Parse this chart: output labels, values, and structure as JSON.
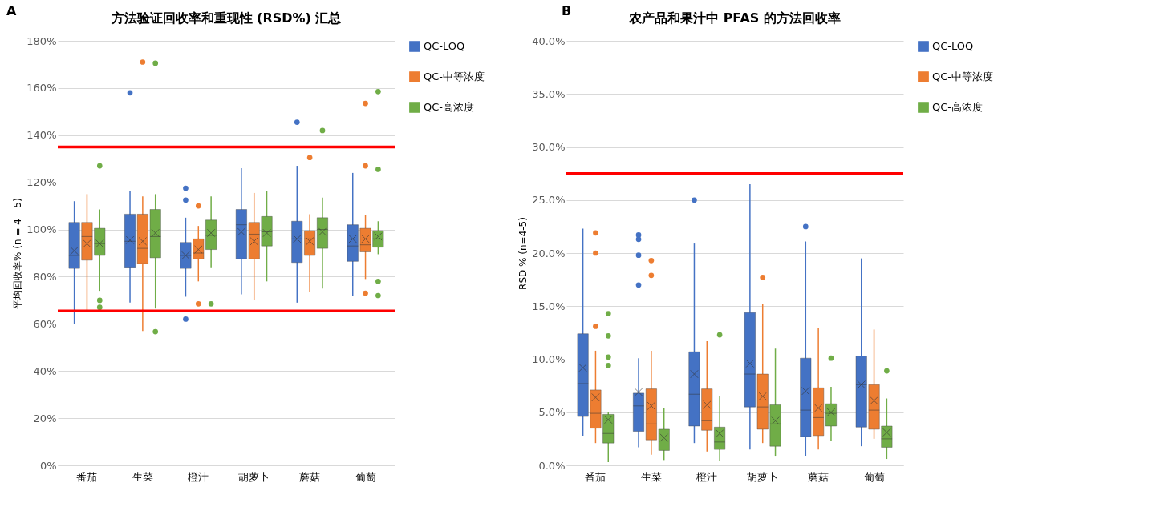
{
  "chart_data": [
    {
      "type": "box",
      "title": "方法验证回收率和重现性 (RSD%) 汇总",
      "ylabel": "平均回收率% (n = 4 – 5)",
      "annotations": [
        "A"
      ],
      "categories": [
        "番茄",
        "生菜",
        "橙汁",
        "胡萝卜",
        "蘑菇",
        "葡萄"
      ],
      "ylim": [
        0,
        180
      ],
      "yticks": [
        {
          "value": 0,
          "label": "0%"
        },
        {
          "value": 20,
          "label": "20%"
        },
        {
          "value": 40,
          "label": "40%"
        },
        {
          "value": 60,
          "label": "60%"
        },
        {
          "value": 80,
          "label": "80%"
        },
        {
          "value": 100,
          "label": "100%"
        },
        {
          "value": 120,
          "label": "120%"
        },
        {
          "value": 140,
          "label": "140%"
        },
        {
          "value": 160,
          "label": "160%"
        },
        {
          "value": 180,
          "label": "180%"
        }
      ],
      "grid": "y",
      "legend": "right",
      "ref_lines": [
        {
          "axis": "y",
          "value": 135,
          "color": "#ff0000"
        },
        {
          "axis": "y",
          "value": 65.5,
          "color": "#ff0000"
        }
      ],
      "series": [
        {
          "name": "QC-LOQ",
          "color": "#4472c4",
          "boxes": [
            {
              "low": 60,
              "q1": 83.5,
              "median": 89,
              "q3": 103,
              "high": 112,
              "mean": 91
            },
            {
              "low": 69,
              "q1": 84,
              "median": 95,
              "q3": 106.5,
              "high": 116.5,
              "mean": 95.5,
              "outliers": [
                158
              ]
            },
            {
              "low": 71.5,
              "q1": 83.5,
              "median": 89,
              "q3": 94.5,
              "high": 105,
              "mean": 89,
              "outliers": [
                117.5,
                112.5,
                62
              ]
            },
            {
              "low": 72.5,
              "q1": 87.5,
              "median": 102,
              "q3": 108.5,
              "high": 126,
              "mean": 99
            },
            {
              "low": 69,
              "q1": 86,
              "median": 96,
              "q3": 103.5,
              "high": 127,
              "mean": 96,
              "outliers": [
                145.5
              ]
            },
            {
              "low": 72,
              "q1": 86.5,
              "median": 93,
              "q3": 102,
              "high": 124,
              "mean": 96
            }
          ]
        },
        {
          "name": "QC-中等浓度",
          "color": "#ed7d31",
          "boxes": [
            {
              "low": 65,
              "q1": 87,
              "median": 97,
              "q3": 103,
              "high": 115,
              "mean": 94
            },
            {
              "low": 57,
              "q1": 85.5,
              "median": 92,
              "q3": 106.5,
              "high": 114,
              "mean": 95,
              "outliers": [
                171
              ]
            },
            {
              "low": 78,
              "q1": 87.5,
              "median": 90,
              "q3": 96,
              "high": 101.5,
              "mean": 91.5,
              "outliers": [
                110,
                68.5
              ]
            },
            {
              "low": 70,
              "q1": 87.5,
              "median": 98,
              "q3": 103,
              "high": 115.5,
              "mean": 95
            },
            {
              "low": 73.5,
              "q1": 89,
              "median": 96,
              "q3": 99.5,
              "high": 106.5,
              "mean": 95,
              "outliers": [
                130.5
              ]
            },
            {
              "low": 79,
              "q1": 90.5,
              "median": 93.5,
              "q3": 100.5,
              "high": 106,
              "mean": 96,
              "outliers": [
                153.5,
                127,
                73
              ]
            }
          ]
        },
        {
          "name": "QC-高浓度",
          "color": "#70ad47",
          "boxes": [
            {
              "low": 74,
              "q1": 89,
              "median": 94,
              "q3": 100.5,
              "high": 108.5,
              "mean": 94,
              "outliers": [
                127,
                70,
                67
              ]
            },
            {
              "low": 66.5,
              "q1": 88,
              "median": 97,
              "q3": 108.5,
              "high": 115,
              "mean": 98.5,
              "outliers": [
                170.5,
                56.7
              ]
            },
            {
              "low": 84,
              "q1": 91.5,
              "median": 97.5,
              "q3": 104,
              "high": 114,
              "mean": 98.5,
              "outliers": [
                68.5
              ]
            },
            {
              "low": 78,
              "q1": 93,
              "median": 99,
              "q3": 105.5,
              "high": 116.5,
              "mean": 98.5
            },
            {
              "low": 75,
              "q1": 92,
              "median": 100,
              "q3": 105,
              "high": 113.5,
              "mean": 99,
              "outliers": [
                142
              ]
            },
            {
              "low": 89.5,
              "q1": 92.5,
              "median": 96,
              "q3": 99.5,
              "high": 103.5,
              "mean": 97,
              "outliers": [
                158.5,
                125.5,
                78,
                72
              ]
            }
          ]
        }
      ]
    },
    {
      "type": "box",
      "title": "农产品和果汁中 PFAS 的方法回收率",
      "ylabel": "RSD % (n=4-5)",
      "annotations": [
        "B"
      ],
      "categories": [
        "番茄",
        "生菜",
        "橙汁",
        "胡萝卜",
        "蘑菇",
        "葡萄"
      ],
      "ylim": [
        0,
        40
      ],
      "yticks": [
        {
          "value": 0,
          "label": "0.0%"
        },
        {
          "value": 5,
          "label": "5.0%"
        },
        {
          "value": 10,
          "label": "10.0%"
        },
        {
          "value": 15,
          "label": "15.0%"
        },
        {
          "value": 20,
          "label": "20.0%"
        },
        {
          "value": 25,
          "label": "25.0%"
        },
        {
          "value": 30,
          "label": "30.0%"
        },
        {
          "value": 35,
          "label": "35.0%"
        },
        {
          "value": 40,
          "label": "40.0%"
        }
      ],
      "grid": "y",
      "legend": "right",
      "ref_lines": [
        {
          "axis": "y",
          "value": 27.5,
          "color": "#ff0000"
        }
      ],
      "series": [
        {
          "name": "QC-LOQ",
          "color": "#4472c4",
          "boxes": [
            {
              "low": 2.8,
              "q1": 4.6,
              "median": 7.7,
              "q3": 12.4,
              "high": 22.3,
              "mean": 9.2
            },
            {
              "low": 1.7,
              "q1": 3.2,
              "median": 5.6,
              "q3": 6.8,
              "high": 10.1,
              "mean": 6.9,
              "outliers": [
                21.7,
                21.3,
                19.8,
                17
              ]
            },
            {
              "low": 2.1,
              "q1": 3.7,
              "median": 6.7,
              "q3": 10.7,
              "high": 20.9,
              "mean": 8.6,
              "outliers": [
                25
              ]
            },
            {
              "low": 1.5,
              "q1": 5.5,
              "median": 8.6,
              "q3": 14.4,
              "high": 26.5,
              "mean": 9.6
            },
            {
              "low": 0.9,
              "q1": 2.7,
              "median": 5.2,
              "q3": 10.1,
              "high": 21.1,
              "mean": 7,
              "outliers": [
                22.5
              ]
            },
            {
              "low": 1.8,
              "q1": 3.6,
              "median": 7.6,
              "q3": 10.3,
              "high": 19.5,
              "mean": 7.6
            }
          ]
        },
        {
          "name": "QC-中等浓度",
          "color": "#ed7d31",
          "boxes": [
            {
              "low": 2.1,
              "q1": 3.5,
              "median": 4.9,
              "q3": 7.1,
              "high": 10.8,
              "mean": 6.4,
              "outliers": [
                21.9,
                20,
                13.1
              ]
            },
            {
              "low": 1,
              "q1": 2.4,
              "median": 3.9,
              "q3": 7.2,
              "high": 10.8,
              "mean": 5.6,
              "outliers": [
                19.3,
                17.9
              ]
            },
            {
              "low": 1.3,
              "q1": 3.3,
              "median": 4.2,
              "q3": 7.2,
              "high": 11.7,
              "mean": 5.7
            },
            {
              "low": 2.1,
              "q1": 3.4,
              "median": 5.5,
              "q3": 8.6,
              "high": 15.2,
              "mean": 6.5,
              "outliers": [
                17.7
              ]
            },
            {
              "low": 1.5,
              "q1": 2.8,
              "median": 4.5,
              "q3": 7.3,
              "high": 12.9,
              "mean": 5.4
            },
            {
              "low": 2.5,
              "q1": 3.4,
              "median": 5.2,
              "q3": 7.6,
              "high": 12.8,
              "mean": 6.1
            }
          ]
        },
        {
          "name": "QC-高浓度",
          "color": "#70ad47",
          "boxes": [
            {
              "low": 0.3,
              "q1": 2.1,
              "median": 3,
              "q3": 4.8,
              "high": 5,
              "mean": 4.3,
              "outliers": [
                14.3,
                12.2,
                10.2,
                9.4
              ]
            },
            {
              "low": 0.5,
              "q1": 1.4,
              "median": 2.3,
              "q3": 3.4,
              "high": 5.4,
              "mean": 2.6
            },
            {
              "low": 0.4,
              "q1": 1.5,
              "median": 2.2,
              "q3": 3.6,
              "high": 6.5,
              "mean": 3,
              "outliers": [
                12.3
              ]
            },
            {
              "low": 0.9,
              "q1": 1.8,
              "median": 3.9,
              "q3": 5.7,
              "high": 11,
              "mean": 4.2
            },
            {
              "low": 2.3,
              "q1": 3.7,
              "median": 4.9,
              "q3": 5.8,
              "high": 7.4,
              "mean": 5,
              "outliers": [
                10.1
              ]
            },
            {
              "low": 0.6,
              "q1": 1.7,
              "median": 2.5,
              "q3": 3.7,
              "high": 6.3,
              "mean": 3.1,
              "outliers": [
                8.9
              ]
            }
          ]
        }
      ]
    }
  ]
}
